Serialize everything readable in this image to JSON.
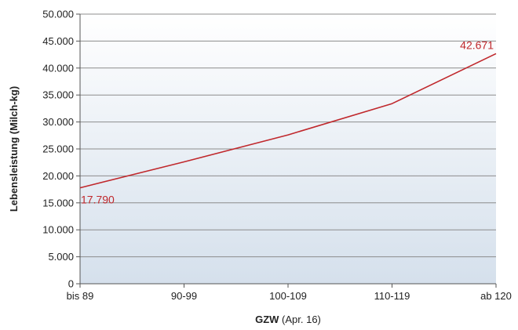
{
  "chart_data": {
    "type": "line",
    "categories": [
      "bis 89",
      "90-99",
      "100-109",
      "110-119",
      "ab 120"
    ],
    "series": [
      {
        "values": [
          17790,
          22600,
          27600,
          33400,
          42671
        ]
      }
    ],
    "ylim": [
      0,
      50000
    ],
    "yticks": [
      "0",
      "5.000",
      "10.000",
      "15.000",
      "20.000",
      "25.000",
      "30.000",
      "35.000",
      "40.000",
      "45.000",
      "50.000"
    ],
    "ylabel": "Lebensleistung (Milch-kg)",
    "xlabel_bold": "GZW",
    "xlabel_rest": " (Apr. 16)",
    "data_labels": [
      {
        "index": 0,
        "text": "17.790"
      },
      {
        "index": 4,
        "text": "42.671"
      }
    ],
    "grid": true,
    "line_color": "#c0282c",
    "background_gradient": [
      "#ffffff",
      "#d5e0ec"
    ]
  }
}
